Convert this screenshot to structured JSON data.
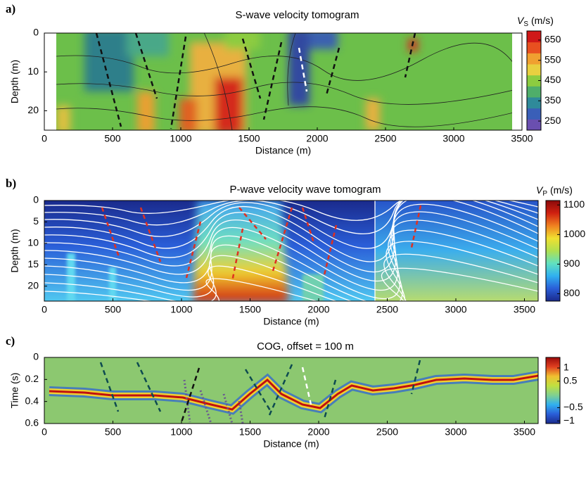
{
  "chart_data": [
    {
      "type": "heatmap",
      "panel_label": "a)",
      "title": "S-wave velocity tomogram",
      "xlabel": "Distance (m)",
      "ylabel": "Depth (m)",
      "xlim": [
        0,
        3500
      ],
      "xticks": [
        0,
        500,
        1000,
        1500,
        2000,
        2500,
        3000,
        3500
      ],
      "ylim": [
        0,
        25
      ],
      "yticks": [
        0,
        10,
        20
      ],
      "y_inverted": true,
      "colorbar_label": {
        "symbol": "V",
        "subscript": "S",
        "unit": "(m/s)"
      },
      "clim": [
        205,
        695
      ],
      "cticks": [
        250,
        350,
        450,
        550,
        650
      ],
      "colormap": [
        "#6a4fb0",
        "#3a5fb8",
        "#2f8a9a",
        "#4fae6a",
        "#8ccc40",
        "#e8d040",
        "#f0a030",
        "#e85020",
        "#d01818"
      ],
      "discrete": true
    },
    {
      "type": "heatmap",
      "panel_label": "b)",
      "title": "P-wave velocity wave tomogram",
      "xlabel": "Distance (m)",
      "ylabel": "Depth (m)",
      "xlim": [
        0,
        3600
      ],
      "xticks": [
        0,
        500,
        1000,
        1500,
        2000,
        2500,
        3000,
        3500
      ],
      "ylim": [
        0,
        23.5
      ],
      "yticks": [
        0,
        5,
        10,
        15,
        20
      ],
      "y_inverted": true,
      "colorbar_label": {
        "symbol": "V",
        "subscript": "P",
        "unit": "(m/s)"
      },
      "clim": [
        775,
        1115
      ],
      "cticks": [
        800,
        900,
        1000,
        1100
      ],
      "colormap": [
        "#1a2a8c",
        "#2a5ed8",
        "#30b0f0",
        "#60e0c0",
        "#b0e050",
        "#f0e030",
        "#f08020",
        "#d02010",
        "#8a0a0a"
      ],
      "discrete": false
    },
    {
      "type": "heatmap",
      "panel_label": "c)",
      "title": "COG, offset = 100 m",
      "xlabel": "Distance (m)",
      "ylabel": "Time (s)",
      "xlim": [
        0,
        3600
      ],
      "xticks": [
        0,
        500,
        1000,
        1500,
        2000,
        2500,
        3000,
        3500
      ],
      "ylim": [
        0,
        0.6
      ],
      "yticks": [
        0,
        0.2,
        0.4,
        0.6
      ],
      "y_inverted": true,
      "clim": [
        -1.1,
        1.4
      ],
      "cticks": [
        1,
        0.5,
        {
          "value": -0.5,
          "label": "−0.5"
        },
        {
          "value": -1,
          "label": "−1"
        }
      ],
      "colormap": [
        "#1a2a8c",
        "#2a5ed8",
        "#30b0f0",
        "#80d090",
        "#c0e040",
        "#f0c030",
        "#e04020",
        "#9a0a0a"
      ],
      "discrete": false
    }
  ]
}
